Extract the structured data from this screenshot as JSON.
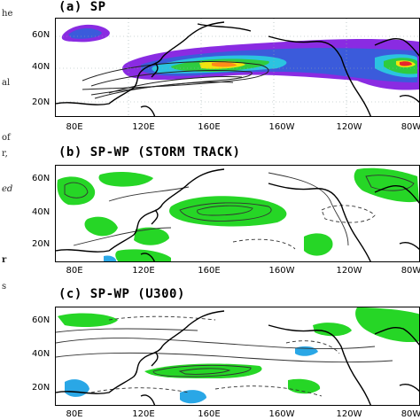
{
  "side_fragments": [
    "he",
    "al",
    "of",
    "r,",
    "ed",
    "r",
    "s"
  ],
  "panels": [
    {
      "id": "a",
      "label": "(a)",
      "title": "SP"
    },
    {
      "id": "b",
      "label": "(b)",
      "title": "SP-WP (STORM TRACK)"
    },
    {
      "id": "c",
      "label": "(c)",
      "title": "SP-WP (U300)"
    }
  ],
  "lat_labels": [
    "60N",
    "40N",
    "20N"
  ],
  "lon_labels": [
    "80E",
    "120E",
    "160E",
    "160W",
    "120W",
    "80W"
  ],
  "colors": {
    "purple": "#8a2be2",
    "blue": "#3b5bdb",
    "cyan": "#2bc3e0",
    "green": "#2ecc40",
    "yellow": "#f1e40f",
    "orange": "#ff8c1a",
    "red": "#e8262b",
    "shade_green": "#26d626",
    "shade_blue": "#2aa7e6",
    "coast": "#000000"
  }
}
